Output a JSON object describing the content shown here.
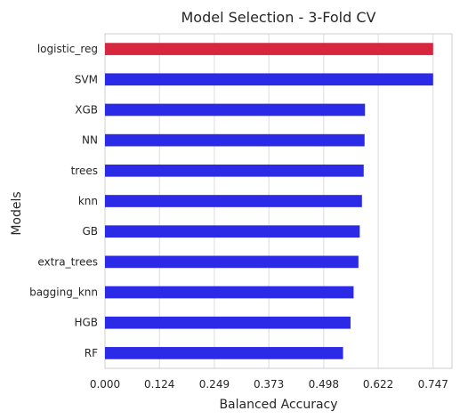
{
  "chart_data": {
    "type": "bar",
    "orientation": "horizontal",
    "title": "Model Selection - 3-Fold CV",
    "xlabel": "Balanced Accuracy",
    "ylabel": "Models",
    "categories": [
      "logistic_reg",
      "SVM",
      "XGB",
      "NN",
      "trees",
      "knn",
      "GB",
      "extra_trees",
      "bagging_knn",
      "HGB",
      "RF"
    ],
    "values": [
      0.747,
      0.747,
      0.592,
      0.591,
      0.589,
      0.585,
      0.58,
      0.577,
      0.566,
      0.559,
      0.542
    ],
    "xticks": [
      "0.000",
      "0.124",
      "0.249",
      "0.373",
      "0.498",
      "0.622",
      "0.747"
    ],
    "xtick_values": [
      0.0,
      0.124,
      0.249,
      0.373,
      0.498,
      0.622,
      0.747
    ],
    "xlim": [
      0,
      0.79
    ],
    "grid": true,
    "colors": {
      "highlight": "#d7263d",
      "default": "#2b2ae6",
      "grid": "#dcdcdc",
      "text": "#262626",
      "spine": "#cccccc"
    }
  }
}
